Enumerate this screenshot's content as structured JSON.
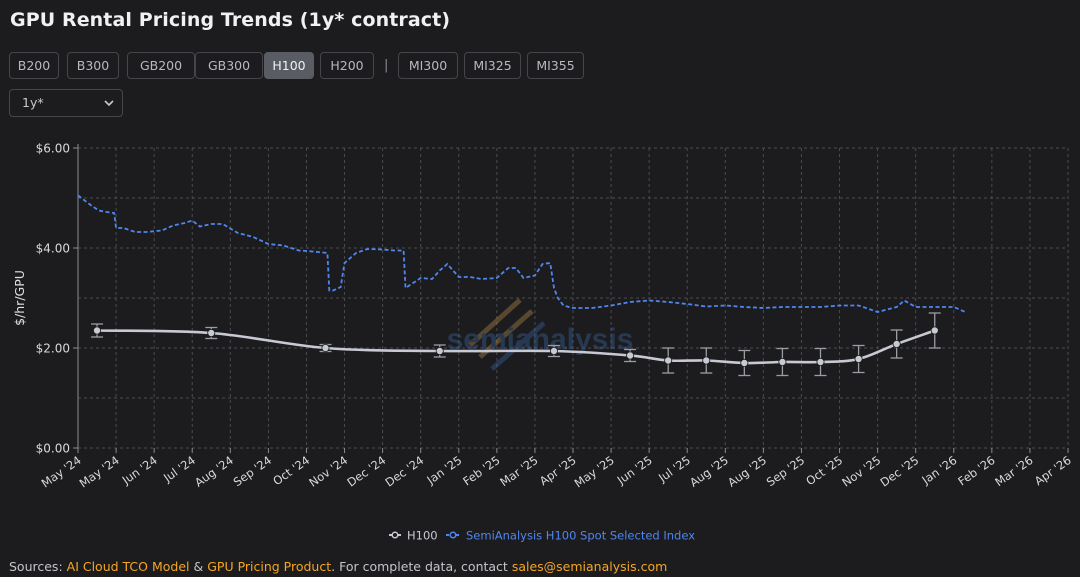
{
  "title": "GPU Rental Pricing Trends (1y* contract)",
  "tabs": [
    {
      "label": "B200",
      "active": false
    },
    {
      "label": "B300",
      "active": false
    },
    {
      "label": "GB200",
      "active": false
    },
    {
      "label": "GB300",
      "active": false
    },
    {
      "label": "H100",
      "active": true
    },
    {
      "label": "H200",
      "active": false
    },
    {
      "label": "MI300",
      "active": false
    },
    {
      "label": "MI325",
      "active": false
    },
    {
      "label": "MI355",
      "active": false
    }
  ],
  "tab_separator": "|",
  "contract_select": {
    "value": "1y*"
  },
  "colors": {
    "h100_line": "#c8cad3",
    "index_line": "#4f86f0",
    "accent_link": "#f5a623",
    "grid": "#4a4b50"
  },
  "footer": {
    "prefix": "Sources: ",
    "link1": "AI Cloud TCO Model",
    "amp": " & ",
    "link2": "GPU Pricing Product",
    "middle": ". For complete data, contact ",
    "email": "sales@semianalysis.com"
  },
  "watermark": "semianalysis",
  "chart_data": {
    "type": "line",
    "ylabel": "$/hr/GPU",
    "y_ticks": [
      "$6.00",
      "$4.00",
      "$2.00",
      "$0.00"
    ],
    "ylim": [
      0,
      6
    ],
    "x_ticks": [
      "May '24",
      "May '24",
      "Jun '24",
      "Jul '24",
      "Aug '24",
      "Sep '24",
      "Oct '24",
      "Nov '24",
      "Dec '24",
      "Dec '24",
      "Jan '25",
      "Feb '25",
      "Mar '25",
      "Apr '25",
      "May '25",
      "Jun '25",
      "Jul '25",
      "Aug '25",
      "Aug '25",
      "Sep '25",
      "Oct '25",
      "Nov '25",
      "Dec '25",
      "Jan '26",
      "Feb '26",
      "Mar '26",
      "Apr '26"
    ],
    "grid": true,
    "legend_position": "bottom-center",
    "series": [
      {
        "name": "H100",
        "style": "solid",
        "points": [
          {
            "x": 0.5,
            "y": 2.35,
            "err": 0.13
          },
          {
            "x": 3.5,
            "y": 2.3,
            "err": 0.11
          },
          {
            "x": 6.5,
            "y": 2.0,
            "err": 0.07
          },
          {
            "x": 9.5,
            "y": 1.94,
            "err": 0.12
          },
          {
            "x": 12.5,
            "y": 1.94,
            "err": 0.11
          },
          {
            "x": 14.5,
            "y": 1.85,
            "err": 0.12
          },
          {
            "x": 15.5,
            "y": 1.75,
            "err": 0.25
          },
          {
            "x": 16.5,
            "y": 1.75,
            "err": 0.25
          },
          {
            "x": 17.5,
            "y": 1.7,
            "err": 0.25
          },
          {
            "x": 18.5,
            "y": 1.72,
            "err": 0.27
          },
          {
            "x": 19.5,
            "y": 1.72,
            "err": 0.27
          },
          {
            "x": 20.5,
            "y": 1.78,
            "err": 0.27
          },
          {
            "x": 21.5,
            "y": 2.08,
            "err": 0.28
          },
          {
            "x": 22.5,
            "y": 2.35,
            "err": 0.35
          }
        ]
      },
      {
        "name": "SemiAnalysis H100 Spot Selected Index",
        "style": "dashed",
        "x": [
          0,
          0.35,
          0.55,
          0.75,
          0.95,
          1.0,
          1.2,
          1.5,
          1.8,
          2.2,
          2.5,
          2.8,
          3.0,
          3.2,
          3.5,
          3.8,
          4.2,
          4.6,
          5.0,
          5.4,
          5.8,
          6.0,
          6.3,
          6.55,
          6.6,
          6.7,
          6.9,
          7.0,
          7.3,
          7.6,
          8.0,
          8.3,
          8.55,
          8.6,
          8.8,
          9.0,
          9.3,
          9.5,
          9.7,
          10.0,
          10.3,
          10.6,
          11.0,
          11.3,
          11.5,
          11.7,
          12.0,
          12.2,
          12.4,
          12.5,
          12.6,
          12.75,
          13.0,
          13.5,
          14.0,
          14.5,
          15.0,
          15.5,
          16.0,
          16.5,
          17.0,
          17.5,
          18.0,
          18.5,
          19.0,
          19.5,
          20.0,
          20.5,
          21.0,
          21.5,
          21.7,
          22.0,
          22.5,
          23.0,
          23.3
        ],
        "y": [
          5.05,
          4.85,
          4.75,
          4.72,
          4.7,
          4.4,
          4.4,
          4.32,
          4.32,
          4.35,
          4.45,
          4.5,
          4.55,
          4.43,
          4.48,
          4.48,
          4.3,
          4.22,
          4.08,
          4.05,
          3.95,
          3.94,
          3.92,
          3.9,
          3.15,
          3.15,
          3.22,
          3.7,
          3.9,
          3.98,
          3.97,
          3.95,
          3.95,
          3.2,
          3.3,
          3.4,
          3.38,
          3.55,
          3.68,
          3.42,
          3.42,
          3.38,
          3.4,
          3.6,
          3.6,
          3.4,
          3.45,
          3.68,
          3.7,
          3.2,
          3.0,
          2.85,
          2.8,
          2.8,
          2.85,
          2.92,
          2.95,
          2.92,
          2.88,
          2.83,
          2.85,
          2.82,
          2.8,
          2.82,
          2.82,
          2.82,
          2.85,
          2.85,
          2.72,
          2.82,
          2.95,
          2.82,
          2.82,
          2.82,
          2.72
        ]
      }
    ]
  }
}
